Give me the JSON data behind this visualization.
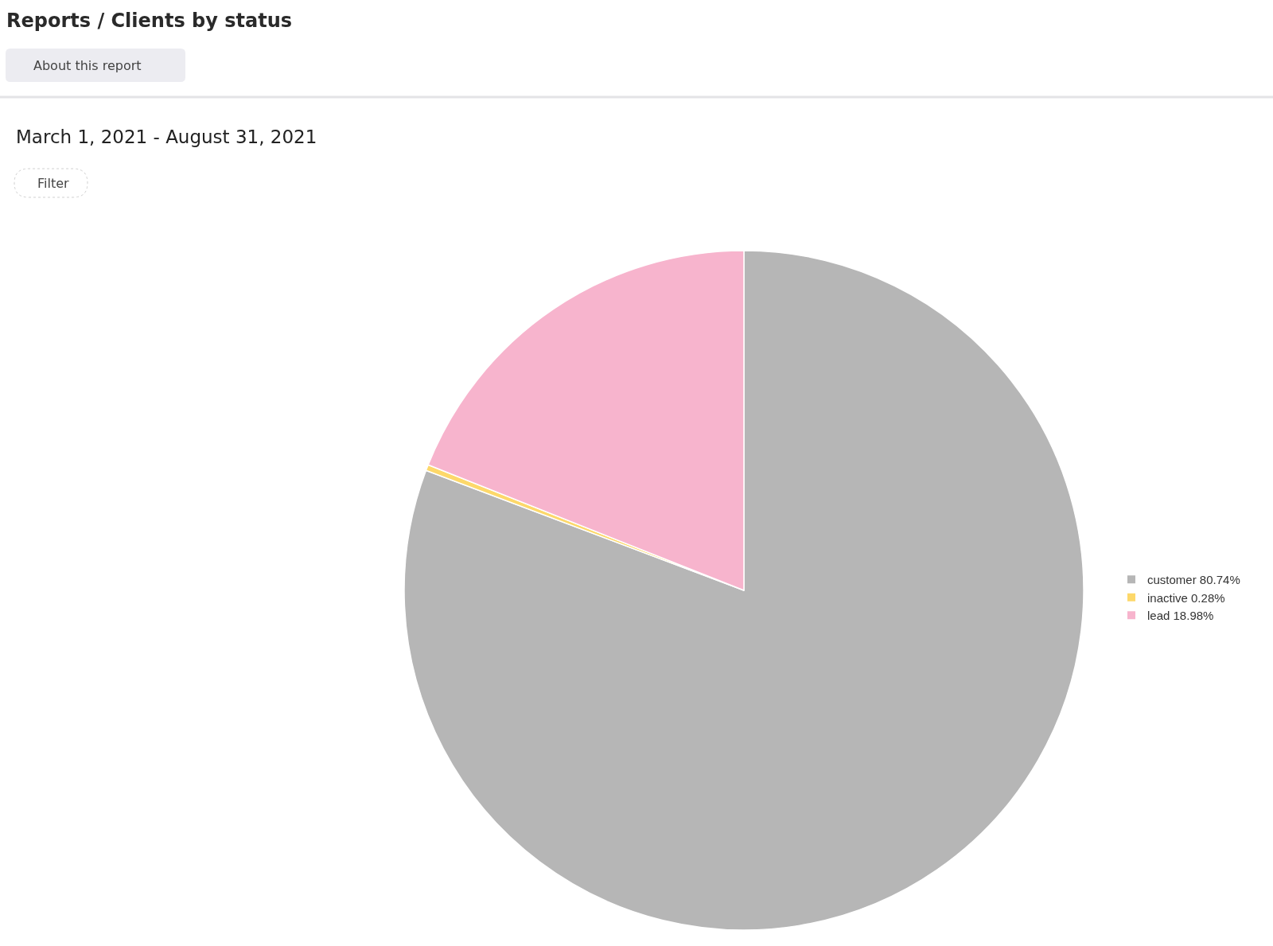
{
  "chart_data": {
    "type": "pie",
    "title": "Reports / Clients by status",
    "subtitle": "March 1, 2021 - August 31, 2021",
    "categories": [
      "customer",
      "inactive",
      "lead"
    ],
    "values": [
      80.74,
      0.28,
      18.98
    ],
    "colors": [
      "#b6b6b6",
      "#fdd86a",
      "#f7b4cd"
    ],
    "value_labels": [
      "80.74%",
      "0.28%",
      "18.98%"
    ],
    "legend": "right",
    "annotations": [
      "About this report",
      "Filter"
    ]
  }
}
